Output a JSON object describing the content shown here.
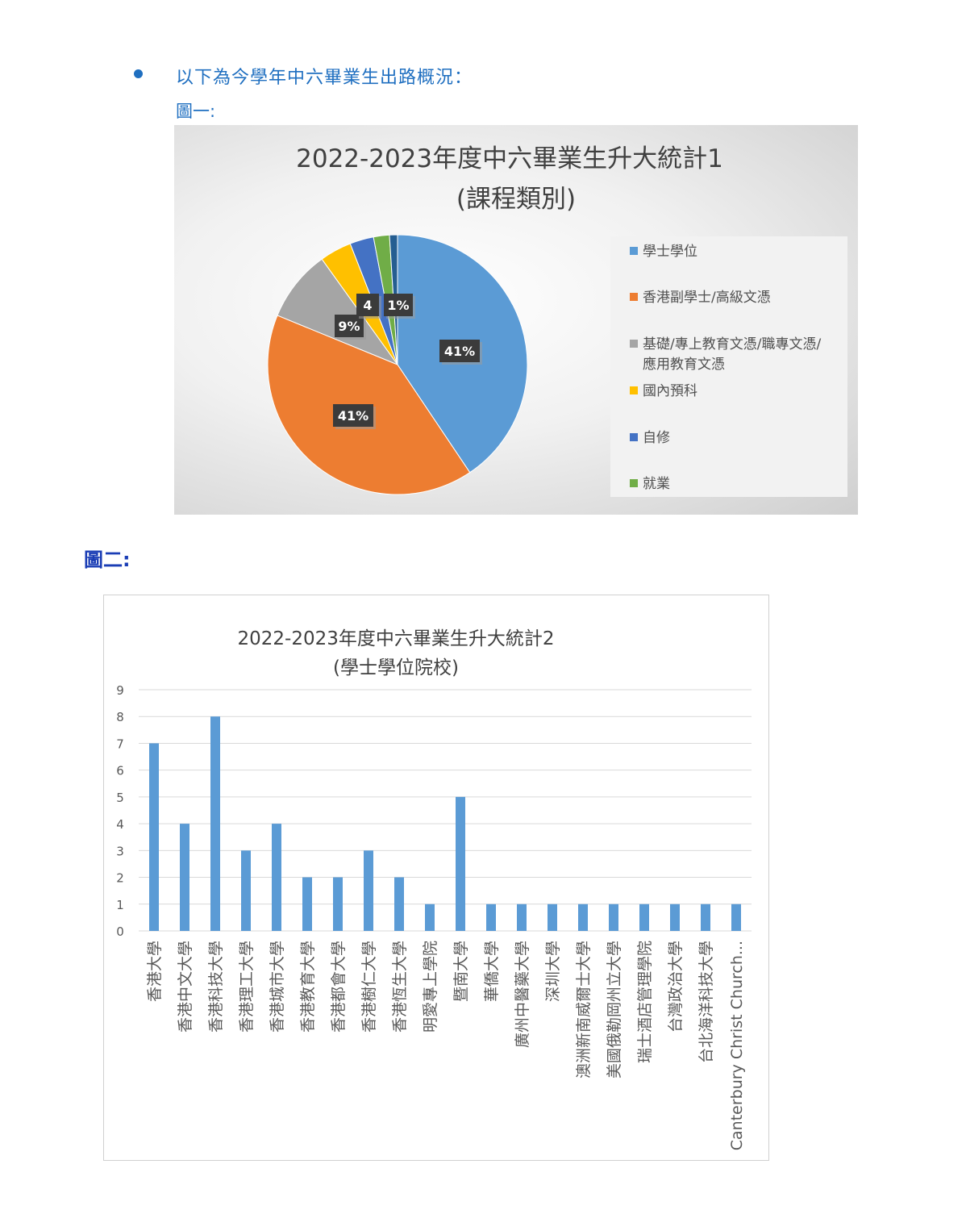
{
  "intro_text": "以下為今學年中六畢業生出路概況：",
  "figure1_label": "圖一:",
  "figure2_label": "圖二:",
  "colors": {
    "accent": "#1f6fc0",
    "label_blue": "#1a3db5",
    "bar": "#5b9bd5"
  },
  "chart_data": [
    {
      "type": "pie",
      "title": "2022-2023年度中六畢業生升大統計1",
      "subtitle": "(課程類別)",
      "legend_position": "right",
      "slices": [
        {
          "name": "學士學位",
          "value": 41,
          "label": "41%",
          "color": "#5b9bd5"
        },
        {
          "name": "香港副學士/高級文憑",
          "value": 41,
          "label": "41%",
          "color": "#ed7d31"
        },
        {
          "name": "基礎/專上教育文憑/職專文憑/應用教育文憑",
          "value": 9,
          "label": "9%",
          "color": "#a5a5a5"
        },
        {
          "name": "國內預科",
          "value": 4,
          "label": "4%",
          "color": "#ffc000"
        },
        {
          "name": "自修",
          "value": 3,
          "label": "3%",
          "color": "#4472c4"
        },
        {
          "name": "就業",
          "value": 2,
          "label": "2%",
          "color": "#70ad47"
        },
        {
          "name": "",
          "value": 1,
          "label": "1%",
          "color": "#255e91"
        }
      ],
      "legend": [
        "學士學位",
        "香港副學士/高級文憑",
        "基礎/專上教育文憑/職專文憑/",
        "應用教育文憑",
        "國內預科",
        "自修",
        "就業"
      ]
    },
    {
      "type": "bar",
      "title": "2022-2023年度中六畢業生升大統計2",
      "subtitle": "(學士學位院校)",
      "ylim": [
        0,
        9
      ],
      "yticks": [
        0,
        1,
        2,
        3,
        4,
        5,
        6,
        7,
        8,
        9
      ],
      "grid": true,
      "categories": [
        "香港大學",
        "香港中文大學",
        "香港科技大學",
        "香港理工大學",
        "香港城市大學",
        "香港教育大學",
        "香港都會大學",
        "香港樹仁大學",
        "香港恆生大學",
        "明愛專上學院",
        "暨南大學",
        "華僑大學",
        "廣州中醫藥大學",
        "深圳大學",
        "澳洲新南威爾士大學",
        "美國俄勒岡州立大學",
        "瑞士酒店管理學院",
        "台灣政治大學",
        "台北海洋科技大學",
        "Canterbury Christ Church..."
      ],
      "values": [
        7,
        4,
        8,
        3,
        4,
        2,
        2,
        3,
        2,
        1,
        5,
        1,
        1,
        1,
        1,
        1,
        1,
        1,
        1,
        1
      ]
    }
  ]
}
